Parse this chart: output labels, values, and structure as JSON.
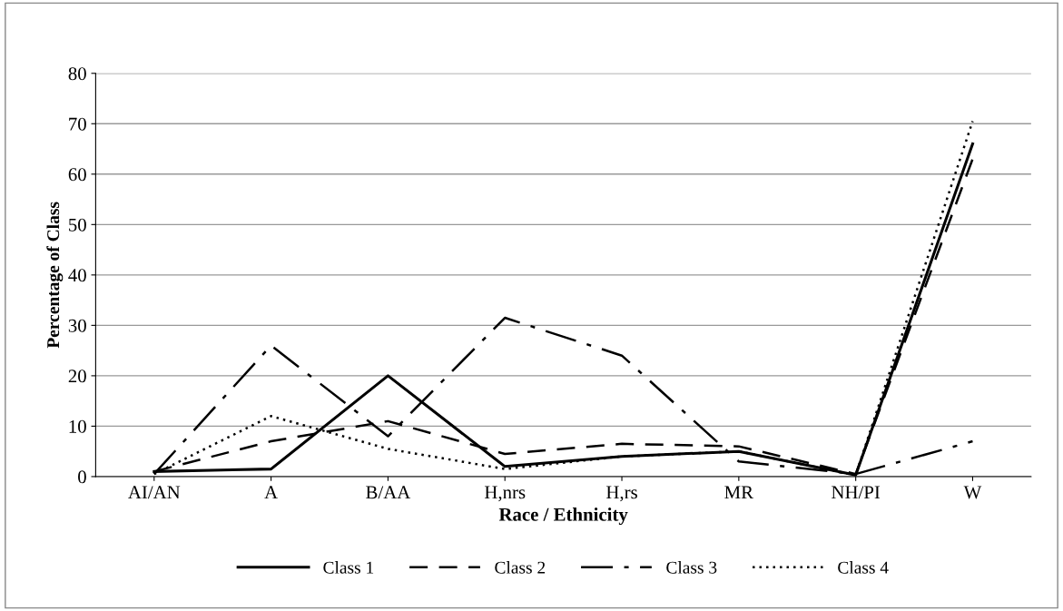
{
  "chart_data": {
    "type": "line",
    "xlabel": "Race / Ethnicity",
    "ylabel": "Percentage of Class",
    "categories": [
      "AI/AN",
      "A",
      "B/AA",
      "H,nrs",
      "H,rs",
      "MR",
      "NH/PI",
      "W"
    ],
    "series": [
      {
        "name": "Class 1",
        "color": "#000000",
        "line_style": "solid",
        "values": [
          1,
          1.5,
          20,
          2,
          4,
          5,
          0.3,
          66
        ]
      },
      {
        "name": "Class 2",
        "color": "#000000",
        "line_style": "dashed",
        "values": [
          1,
          7,
          11,
          4.5,
          6.5,
          6,
          0.5,
          63
        ]
      },
      {
        "name": "Class 3",
        "color": "#000000",
        "line_style": "dashdot",
        "values": [
          0.5,
          26,
          8,
          31.5,
          24,
          3,
          0.5,
          7
        ]
      },
      {
        "name": "Class 4",
        "color": "#000000",
        "line_style": "dotted",
        "values": [
          0.5,
          12,
          5.5,
          1.5,
          4,
          5,
          0.3,
          70.5
        ]
      }
    ],
    "ylim": [
      0,
      80
    ],
    "yticks": [
      0,
      10,
      20,
      30,
      40,
      50,
      60,
      70,
      80
    ],
    "grid": "y",
    "legend": "bottom",
    "marker": "none"
  }
}
